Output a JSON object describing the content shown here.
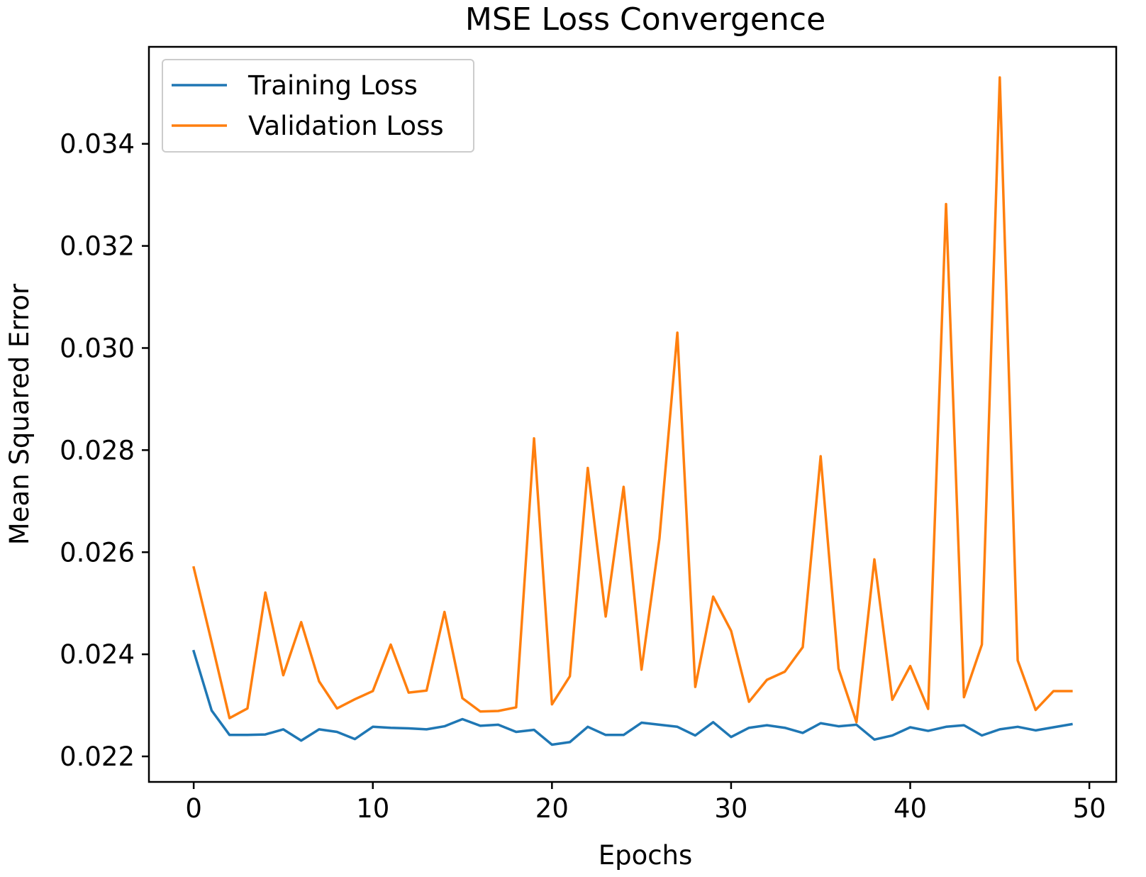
{
  "chart_data": {
    "type": "line",
    "title": "MSE Loss Convergence",
    "xlabel": "Epochs",
    "ylabel": "Mean Squared Error",
    "xlim": [
      -2.5,
      51.5
    ],
    "ylim": [
      0.0215,
      0.0359
    ],
    "xticks": [
      0,
      10,
      20,
      30,
      40,
      50
    ],
    "xtick_labels": [
      "0",
      "10",
      "20",
      "30",
      "40",
      "50"
    ],
    "yticks": [
      0.022,
      0.024,
      0.026,
      0.028,
      0.03,
      0.032,
      0.034
    ],
    "ytick_labels": [
      "0.022",
      "0.024",
      "0.026",
      "0.028",
      "0.030",
      "0.032",
      "0.034"
    ],
    "grid": false,
    "legend_position": "upper-left",
    "x": [
      0,
      1,
      2,
      3,
      4,
      5,
      6,
      7,
      8,
      9,
      10,
      11,
      12,
      13,
      14,
      15,
      16,
      17,
      18,
      19,
      20,
      21,
      22,
      23,
      24,
      25,
      26,
      27,
      28,
      29,
      30,
      31,
      32,
      33,
      34,
      35,
      36,
      37,
      38,
      39,
      40,
      41,
      42,
      43,
      44,
      45,
      46,
      47,
      48,
      49
    ],
    "series": [
      {
        "name": "Training Loss",
        "color": "#1f77b4",
        "values": [
          0.02406,
          0.0229,
          0.02242,
          0.02242,
          0.02243,
          0.02253,
          0.02231,
          0.02253,
          0.02248,
          0.02234,
          0.02258,
          0.02256,
          0.02255,
          0.02253,
          0.02259,
          0.02273,
          0.0226,
          0.02262,
          0.02248,
          0.02252,
          0.02223,
          0.02228,
          0.02258,
          0.02242,
          0.02242,
          0.02266,
          0.02262,
          0.02258,
          0.02241,
          0.02267,
          0.02238,
          0.02256,
          0.02261,
          0.02256,
          0.02246,
          0.02265,
          0.02259,
          0.02262,
          0.02233,
          0.02241,
          0.02257,
          0.0225,
          0.02258,
          0.02261,
          0.02241,
          0.02253,
          0.02258,
          0.02251,
          0.02257,
          0.02263
        ]
      },
      {
        "name": "Validation Loss",
        "color": "#ff7f0e",
        "values": [
          0.0257,
          0.02424,
          0.02275,
          0.02294,
          0.02521,
          0.02359,
          0.02463,
          0.02347,
          0.02294,
          0.02312,
          0.02328,
          0.02419,
          0.02325,
          0.02329,
          0.02483,
          0.02314,
          0.02288,
          0.02289,
          0.02296,
          0.02823,
          0.02302,
          0.02357,
          0.02765,
          0.02474,
          0.02728,
          0.0237,
          0.02627,
          0.0303,
          0.02336,
          0.02513,
          0.02446,
          0.02307,
          0.0235,
          0.02366,
          0.02414,
          0.02788,
          0.02372,
          0.02267,
          0.02586,
          0.02311,
          0.02377,
          0.02293,
          0.03282,
          0.02316,
          0.02419,
          0.0353,
          0.02388,
          0.02291,
          0.02328,
          0.02328
        ]
      }
    ]
  }
}
